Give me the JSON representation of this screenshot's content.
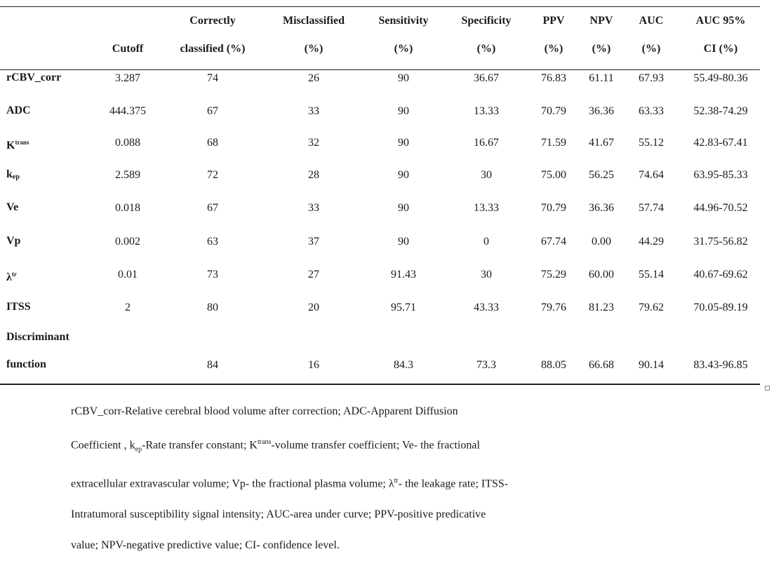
{
  "table": {
    "headers": [
      {
        "line1": "",
        "line2": "Cutoff"
      },
      {
        "line1": "Correctly",
        "line2": "classified (%)"
      },
      {
        "line1": "Misclassified",
        "line2": "(%)"
      },
      {
        "line1": "Sensitivity",
        "line2": "(%)"
      },
      {
        "line1": "Specificity",
        "line2": "(%)"
      },
      {
        "line1": "PPV",
        "line2": "(%)"
      },
      {
        "line1": "NPV",
        "line2": "(%)"
      },
      {
        "line1": "AUC",
        "line2": "(%)"
      },
      {
        "line1": "AUC 95%",
        "line2": "CI (%)"
      }
    ],
    "rows": [
      {
        "label": "rCBV_corr",
        "label_base": "rCBV_corr",
        "label_sub": "",
        "label_sup": "",
        "values": [
          "3.287",
          "74",
          "26",
          "90",
          "36.67",
          "76.83",
          "61.11",
          "67.93",
          "55.49-80.36"
        ]
      },
      {
        "label": "ADC",
        "label_base": "ADC",
        "label_sub": "",
        "label_sup": "",
        "values": [
          "444.375",
          "67",
          "33",
          "90",
          "13.33",
          "70.79",
          "36.36",
          "63.33",
          "52.38-74.29"
        ]
      },
      {
        "label": "Ktrans",
        "label_base": "K",
        "label_sub": "",
        "label_sup": "trans",
        "values": [
          "0.088",
          "68",
          "32",
          "90",
          "16.67",
          "71.59",
          "41.67",
          "55.12",
          "42.83-67.41"
        ]
      },
      {
        "label": "kep",
        "label_base": "k",
        "label_sub": "ep",
        "label_sup": "",
        "values": [
          "2.589",
          "72",
          "28",
          "90",
          "30",
          "75.00",
          "56.25",
          "74.64",
          "63.95-85.33"
        ]
      },
      {
        "label": "Ve",
        "label_base": "Ve",
        "label_sub": "",
        "label_sup": "",
        "values": [
          "0.018",
          "67",
          "33",
          "90",
          "13.33",
          "70.79",
          "36.36",
          "57.74",
          "44.96-70.52"
        ]
      },
      {
        "label": "Vp",
        "label_base": "Vp",
        "label_sub": "",
        "label_sup": "",
        "values": [
          "0.002",
          "63",
          "37",
          "90",
          "0",
          "67.74",
          "0.00",
          "44.29",
          "31.75-56.82"
        ]
      },
      {
        "label": "λtr",
        "label_base": "λ",
        "label_sub": "",
        "label_sup": "tr",
        "values": [
          "0.01",
          "73",
          "27",
          "91.43",
          "30",
          "75.29",
          "60.00",
          "55.14",
          "40.67-69.62"
        ]
      },
      {
        "label": "ITSS",
        "label_base": "ITSS",
        "label_sub": "",
        "label_sup": "",
        "values": [
          "2",
          "80",
          "20",
          "95.71",
          "43.33",
          "79.76",
          "81.23",
          "79.62",
          "70.05-89.19"
        ]
      }
    ],
    "last_row": {
      "label_line1": "Discriminant",
      "label_line2": "function",
      "values": [
        "",
        "84",
        "16",
        "84.3",
        "73.3",
        "88.05",
        "66.68",
        "90.14",
        "83.43-96.85"
      ]
    }
  },
  "footnote": {
    "text": "rCBV_corr-Relative cerebral blood volume after correction; ADC-Apparent Diffusion Coefficient , kep-Rate transfer constant; Ktrans-volume transfer coefficient; Ve- the fractional extracellular extravascular volume; Vp- the fractional plasma volume; λtr- the leakage rate; ITSS-Intratumoral susceptibility signal intensity; AUC-area under curve; PPV-positive predicative value; NPV-negative predictive value; CI- confidence level.",
    "line1": "rCBV_corr-Relative  cerebral blood volume after correction; ADC-Apparent Diffusion",
    "line2_a": "Coefficient , k",
    "line2_sub": "ep",
    "line2_b": "-Rate transfer constant; K",
    "line2_sup": "trans",
    "line2_c": "-volume transfer coefficient; Ve- the fractional",
    "line3": "extracellular extravascular volume; Vp- the fractional plasma volume; λ",
    "line3_sup": "tr",
    "line3_b": "- the leakage rate; ITSS-",
    "line4": "Intratumoral susceptibility signal intensity; AUC-area under curve; PPV-positive predicative",
    "line5": "value; NPV-negative predictive value; CI- confidence level."
  }
}
